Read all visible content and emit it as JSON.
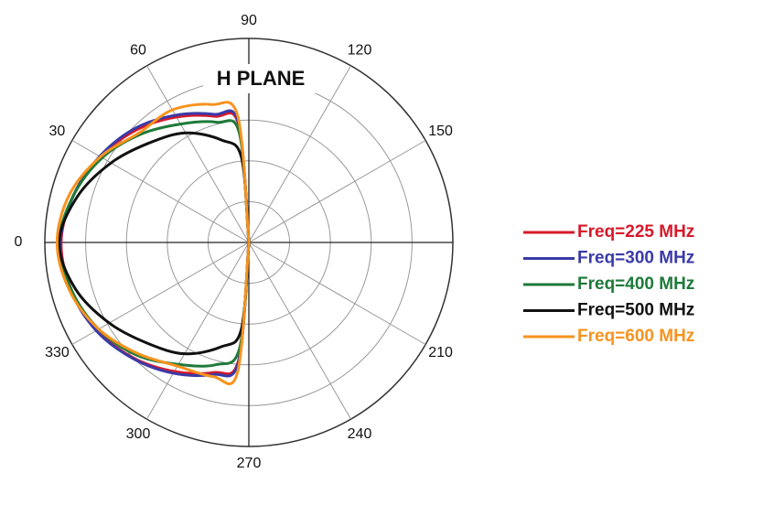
{
  "chart_data": {
    "type": "polar",
    "title": "H PLANE",
    "theta": [
      90,
      85,
      75,
      60,
      45,
      30,
      15,
      0,
      345,
      330,
      315,
      300,
      285,
      275,
      270
    ],
    "series": [
      {
        "name": "Freq=225 MHz",
        "color": "#d7182a",
        "values": [
          0,
          2.9,
          3.2,
          3.55,
          3.9,
          4.2,
          4.45,
          4.6,
          4.5,
          4.3,
          4.0,
          3.65,
          3.3,
          2.9,
          0
        ]
      },
      {
        "name": "Freq=300 MHz",
        "color": "#3a3aa8",
        "values": [
          0,
          2.95,
          3.25,
          3.6,
          3.95,
          4.22,
          4.45,
          4.62,
          4.52,
          4.32,
          4.02,
          3.7,
          3.35,
          2.95,
          0
        ]
      },
      {
        "name": "Freq=400 MHz",
        "color": "#1e7a3a",
        "values": [
          0,
          2.7,
          3.05,
          3.35,
          3.75,
          4.15,
          4.45,
          4.65,
          4.5,
          4.25,
          3.9,
          3.45,
          3.1,
          2.6,
          0
        ]
      },
      {
        "name": "Freq=500 MHz",
        "color": "#111111",
        "values": [
          0,
          2.1,
          2.6,
          3.1,
          3.45,
          3.9,
          4.35,
          4.65,
          4.4,
          3.95,
          3.5,
          3.15,
          2.65,
          2.15,
          0
        ]
      },
      {
        "name": "Freq=600 MHz",
        "color": "#f7931e",
        "values": [
          0,
          3.1,
          3.5,
          3.75,
          3.8,
          4.2,
          4.55,
          4.7,
          4.55,
          4.25,
          3.85,
          3.5,
          3.4,
          3.2,
          0
        ]
      }
    ],
    "rlim": [
      0,
      5
    ],
    "rticks": [
      1,
      2,
      3,
      4,
      5
    ],
    "thetaticks": [
      0,
      30,
      60,
      90,
      120,
      150,
      {
        "value": 180,
        "label": null
      },
      210,
      240,
      270,
      300,
      330
    ],
    "grid": true
  }
}
